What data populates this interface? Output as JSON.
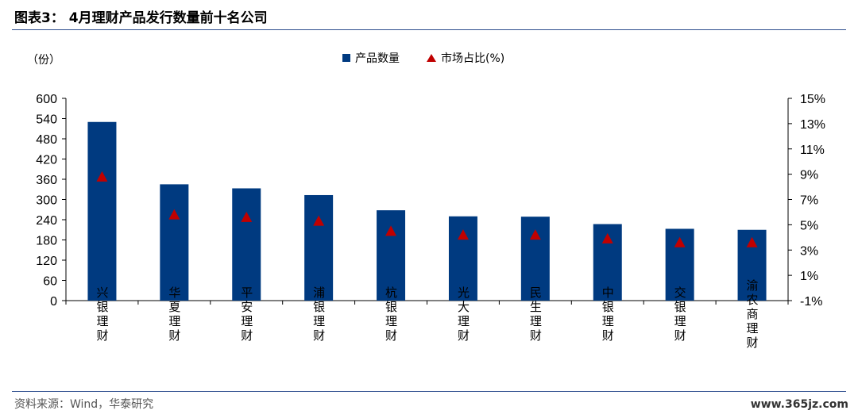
{
  "header": {
    "title": "图表3：  4月理财产品发行数量前十名公司"
  },
  "footer": {
    "source": "资料来源：Wind，华泰研究",
    "watermark": "www.365jz.com"
  },
  "colors": {
    "bar": "#003a80",
    "marker": "#c00000",
    "rule": "#2f4f8f"
  },
  "chart_data": {
    "type": "bar",
    "categories": [
      "兴银理财",
      "华夏理财",
      "平安理财",
      "浦银理财",
      "杭银理财",
      "光大理财",
      "民生理财",
      "中银理财",
      "交银理财",
      "渝农商理财"
    ],
    "series": [
      {
        "name": "产品数量",
        "type": "bar",
        "axis": "left",
        "values": [
          530,
          345,
          333,
          313,
          268,
          250,
          249,
          227,
          213,
          210
        ]
      },
      {
        "name": "市场占比(%)",
        "type": "marker",
        "axis": "right",
        "values": [
          8.8,
          5.8,
          5.6,
          5.3,
          4.5,
          4.2,
          4.2,
          3.9,
          3.6,
          3.6
        ]
      }
    ],
    "left_axis": {
      "unit_label": "（份）",
      "ylim": [
        0,
        600
      ],
      "ticks": [
        0,
        60,
        120,
        180,
        240,
        300,
        360,
        420,
        480,
        540,
        600
      ]
    },
    "right_axis": {
      "ylim": [
        -1,
        15
      ],
      "ticks": [
        -1,
        1,
        3,
        5,
        7,
        9,
        11,
        13,
        15
      ],
      "tick_labels": [
        "-1%",
        "1%",
        "3%",
        "5%",
        "7%",
        "9%",
        "11%",
        "13%",
        "15%"
      ]
    },
    "legend_position": "top-center",
    "grid": false
  }
}
